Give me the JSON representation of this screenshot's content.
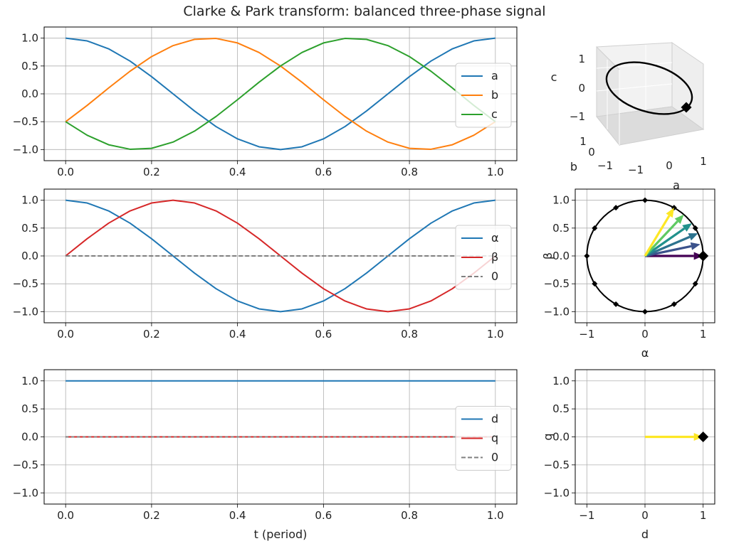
{
  "figure": {
    "title": "Clarke & Park transform: balanced three-phase signal"
  },
  "colors": {
    "blue": "#1f77b4",
    "orange": "#ff7f0e",
    "green": "#2ca02c",
    "red": "#d62728",
    "gray": "#808080",
    "black": "#000000"
  },
  "chart_data": [
    {
      "id": "abc",
      "type": "line",
      "title": "",
      "xlabel": "",
      "ylabel": "",
      "xlim": [
        -0.05,
        1.05
      ],
      "ylim": [
        -1.2,
        1.2
      ],
      "xticks": [
        0.0,
        0.2,
        0.4,
        0.6,
        0.8,
        1.0
      ],
      "xtick_labels": [
        "0.0",
        "0.2",
        "0.4",
        "0.6",
        "0.8",
        "1.0"
      ],
      "yticks": [
        1.0,
        0.5,
        0.0,
        -0.5,
        -1.0
      ],
      "ytick_labels": [
        "1.0",
        "0.5",
        "0.0",
        "−0.5",
        "−1.0"
      ],
      "grid": true,
      "legend": "center-right",
      "x": [
        0,
        0.05,
        0.1,
        0.15,
        0.2,
        0.25,
        0.3,
        0.35,
        0.4,
        0.45,
        0.5,
        0.55,
        0.6,
        0.65,
        0.7,
        0.75,
        0.8,
        0.85,
        0.9,
        0.95,
        1.0
      ],
      "series": [
        {
          "name": "a",
          "color": "#1f77b4",
          "style": "solid",
          "values": [
            1,
            0.951,
            0.809,
            0.588,
            0.309,
            0,
            -0.309,
            -0.588,
            -0.809,
            -0.951,
            -1,
            -0.951,
            -0.809,
            -0.588,
            -0.309,
            0,
            0.309,
            0.588,
            0.809,
            0.951,
            1
          ]
        },
        {
          "name": "b",
          "color": "#ff7f0e",
          "style": "solid",
          "values": [
            -0.5,
            -0.208,
            0.105,
            0.407,
            0.669,
            0.866,
            0.978,
            0.995,
            0.914,
            0.743,
            0.5,
            0.208,
            -0.105,
            -0.407,
            -0.669,
            -0.866,
            -0.978,
            -0.995,
            -0.914,
            -0.743,
            -0.5
          ]
        },
        {
          "name": "c",
          "color": "#2ca02c",
          "style": "solid",
          "values": [
            -0.5,
            -0.743,
            -0.914,
            -0.995,
            -0.978,
            -0.866,
            -0.669,
            -0.407,
            -0.105,
            0.208,
            0.5,
            0.743,
            0.914,
            0.995,
            0.978,
            0.866,
            0.669,
            0.407,
            0.105,
            -0.208,
            -0.5
          ]
        }
      ]
    },
    {
      "id": "abc3d",
      "type": "line",
      "title": "",
      "xlabel": "a",
      "ylabel": "b",
      "zlabel": "c",
      "xtick_labels": [
        "−1",
        "0",
        "1"
      ],
      "ytick_labels": [
        "−1",
        "0",
        "1"
      ],
      "ztick_labels": [
        "1",
        "0",
        "−1"
      ],
      "series": [
        {
          "name": "",
          "color": "#000000",
          "style": "solid"
        }
      ],
      "marker_point": {
        "a": 1.0,
        "b": -0.5,
        "c": -0.5
      }
    },
    {
      "id": "alphabeta",
      "type": "line",
      "title": "",
      "xlabel": "",
      "ylabel": "",
      "xlim": [
        -0.05,
        1.05
      ],
      "ylim": [
        -1.2,
        1.2
      ],
      "xticks": [
        0.0,
        0.2,
        0.4,
        0.6,
        0.8,
        1.0
      ],
      "xtick_labels": [
        "0.0",
        "0.2",
        "0.4",
        "0.6",
        "0.8",
        "1.0"
      ],
      "yticks": [
        1.0,
        0.5,
        0.0,
        -0.5,
        -1.0
      ],
      "ytick_labels": [
        "1.0",
        "0.5",
        "0.0",
        "−0.5",
        "−1.0"
      ],
      "grid": true,
      "legend": "center-right",
      "x": [
        0,
        0.05,
        0.1,
        0.15,
        0.2,
        0.25,
        0.3,
        0.35,
        0.4,
        0.45,
        0.5,
        0.55,
        0.6,
        0.65,
        0.7,
        0.75,
        0.8,
        0.85,
        0.9,
        0.95,
        1.0
      ],
      "series": [
        {
          "name": "α",
          "color": "#1f77b4",
          "style": "solid",
          "values": [
            1,
            0.951,
            0.809,
            0.588,
            0.309,
            0,
            -0.309,
            -0.588,
            -0.809,
            -0.951,
            -1,
            -0.951,
            -0.809,
            -0.588,
            -0.309,
            0,
            0.309,
            0.588,
            0.809,
            0.951,
            1
          ]
        },
        {
          "name": "β",
          "color": "#d62728",
          "style": "solid",
          "values": [
            0,
            0.309,
            0.588,
            0.809,
            0.951,
            1,
            0.951,
            0.809,
            0.588,
            0.309,
            0,
            -0.309,
            -0.588,
            -0.809,
            -0.951,
            -1,
            -0.951,
            -0.809,
            -0.588,
            -0.309,
            0
          ]
        },
        {
          "name": "0",
          "color": "#808080",
          "style": "dashed",
          "values": [
            0,
            0,
            0,
            0,
            0,
            0,
            0,
            0,
            0,
            0,
            0,
            0,
            0,
            0,
            0,
            0,
            0,
            0,
            0,
            0,
            0
          ]
        }
      ]
    },
    {
      "id": "alphabeta_phasor",
      "type": "scatter",
      "title": "",
      "xlabel": "α",
      "ylabel": "β",
      "xlim": [
        -1.2,
        1.2
      ],
      "ylim": [
        -1.2,
        1.2
      ],
      "xticks": [
        -1,
        0,
        1
      ],
      "xtick_labels": [
        "−1",
        "0",
        "1"
      ],
      "yticks": [
        1.0,
        0.5,
        0.0,
        -0.5,
        -1.0
      ],
      "ytick_labels": [
        "1.0",
        "0.5",
        "0.0",
        "−0.5",
        "−1.0"
      ],
      "grid": true,
      "circle_radius": 1,
      "markers": [
        {
          "x": 1,
          "y": 0
        },
        {
          "x": 0.866,
          "y": 0.5
        },
        {
          "x": 0.5,
          "y": 0.866
        },
        {
          "x": 0,
          "y": 1
        },
        {
          "x": -0.5,
          "y": 0.866
        },
        {
          "x": -0.866,
          "y": 0.5
        },
        {
          "x": -1,
          "y": 0
        },
        {
          "x": -0.866,
          "y": -0.5
        },
        {
          "x": -0.5,
          "y": -0.866
        },
        {
          "x": 0,
          "y": -1
        },
        {
          "x": 0.5,
          "y": -0.866
        },
        {
          "x": 0.866,
          "y": -0.5
        }
      ],
      "arrows": [
        {
          "x": 1.0,
          "y": 0.0,
          "color": "#440154"
        },
        {
          "x": 0.951,
          "y": 0.209,
          "color": "#3b528b"
        },
        {
          "x": 0.914,
          "y": 0.407,
          "color": "#2c728e"
        },
        {
          "x": 0.809,
          "y": 0.588,
          "color": "#21918c"
        },
        {
          "x": 0.669,
          "y": 0.743,
          "color": "#5ec962"
        },
        {
          "x": 0.5,
          "y": 0.866,
          "color": "#fde725"
        }
      ],
      "current_point": {
        "x": 1,
        "y": 0
      }
    },
    {
      "id": "dq",
      "type": "line",
      "title": "",
      "xlabel": "t (period)",
      "ylabel": "",
      "xlim": [
        -0.05,
        1.05
      ],
      "ylim": [
        -1.2,
        1.2
      ],
      "xticks": [
        0.0,
        0.2,
        0.4,
        0.6,
        0.8,
        1.0
      ],
      "xtick_labels": [
        "0.0",
        "0.2",
        "0.4",
        "0.6",
        "0.8",
        "1.0"
      ],
      "yticks": [
        1.0,
        0.5,
        0.0,
        -0.5,
        -1.0
      ],
      "ytick_labels": [
        "1.0",
        "0.5",
        "0.0",
        "−0.5",
        "−1.0"
      ],
      "grid": true,
      "legend": "center-right",
      "x": [
        0,
        1.0
      ],
      "series": [
        {
          "name": "d",
          "color": "#1f77b4",
          "style": "solid",
          "values": [
            1,
            1
          ]
        },
        {
          "name": "q",
          "color": "#d62728",
          "style": "solid",
          "values": [
            0,
            0
          ]
        },
        {
          "name": "0",
          "color": "#808080",
          "style": "dotted",
          "values": [
            0,
            0
          ]
        }
      ]
    },
    {
      "id": "dq_phasor",
      "type": "scatter",
      "title": "",
      "xlabel": "d",
      "ylabel": "q",
      "xlim": [
        -1.2,
        1.2
      ],
      "ylim": [
        -1.2,
        1.2
      ],
      "xticks": [
        -1,
        0,
        1
      ],
      "xtick_labels": [
        "−1",
        "0",
        "1"
      ],
      "yticks": [
        1.0,
        0.5,
        0.0,
        -0.5,
        -1.0
      ],
      "ytick_labels": [
        "1.0",
        "0.5",
        "0.0",
        "−0.5",
        "−1.0"
      ],
      "grid": true,
      "arrows": [
        {
          "x": 1.0,
          "y": 0.0,
          "color": "#fde725"
        }
      ],
      "current_point": {
        "x": 1,
        "y": 0
      }
    }
  ]
}
